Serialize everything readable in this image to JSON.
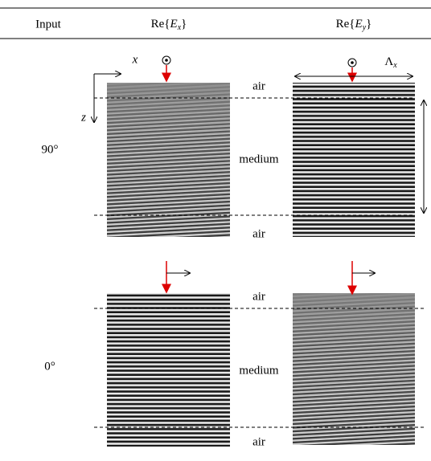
{
  "header": {
    "input": "Input",
    "columns": [
      {
        "prefix": "Re{",
        "symbol": "E",
        "subscript": "x",
        "suffix": "}"
      },
      {
        "prefix": "Re{",
        "symbol": "E",
        "subscript": "y",
        "suffix": "}"
      }
    ]
  },
  "annotations": {
    "x_axis": "x",
    "z_axis": "z",
    "period": {
      "symbol": "Λ",
      "subscript": "x"
    }
  },
  "rows": [
    {
      "input": "90°",
      "layers": [
        "air",
        "medium",
        "air"
      ]
    },
    {
      "input": "0°",
      "layers": [
        "air",
        "medium",
        "air"
      ]
    }
  ]
}
